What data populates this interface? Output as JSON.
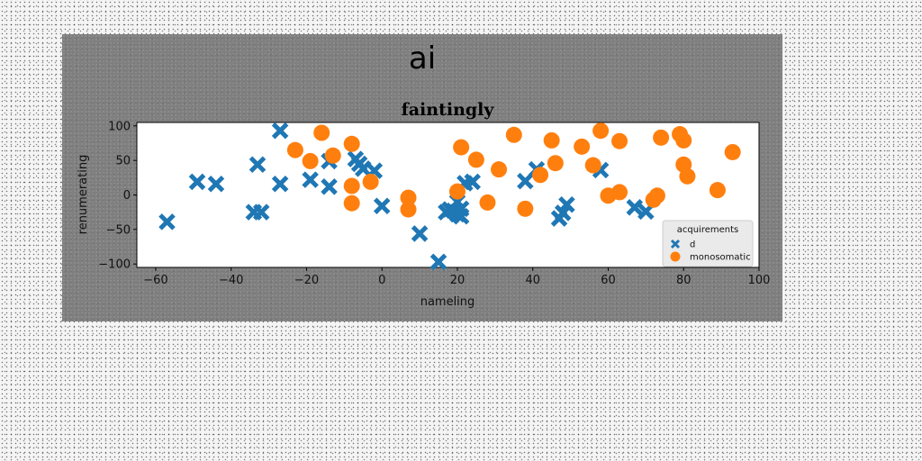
{
  "chart_data": {
    "type": "scatter",
    "suptitle": "ai",
    "title": "faintingly",
    "xlabel": "nameling",
    "ylabel": "renumerating",
    "xlim": [
      -65,
      100
    ],
    "ylim": [
      -105,
      105
    ],
    "xticks": [
      -60,
      -40,
      -20,
      0,
      20,
      40,
      60,
      80,
      100
    ],
    "yticks": [
      -100,
      -50,
      0,
      50,
      100
    ],
    "grid": false,
    "legend": {
      "title": "acquirements",
      "placement": "lower-right"
    },
    "series": [
      {
        "name": "d",
        "marker": "x",
        "color": "#1f77b4",
        "points": [
          [
            -57,
            -39
          ],
          [
            -49,
            19
          ],
          [
            -44,
            16
          ],
          [
            -33,
            44
          ],
          [
            -34,
            -25
          ],
          [
            -32,
            -25
          ],
          [
            -27,
            93
          ],
          [
            -27,
            16
          ],
          [
            -19,
            22
          ],
          [
            -14,
            49
          ],
          [
            -14,
            12
          ],
          [
            -7,
            52
          ],
          [
            -6,
            45
          ],
          [
            -5,
            38
          ],
          [
            -2,
            35
          ],
          [
            0,
            -16
          ],
          [
            10,
            -56
          ],
          [
            15,
            -97
          ],
          [
            17,
            -25
          ],
          [
            18,
            -21
          ],
          [
            19,
            -23
          ],
          [
            20,
            -10
          ],
          [
            20,
            -28
          ],
          [
            21,
            -20
          ],
          [
            21,
            -31
          ],
          [
            22,
            17
          ],
          [
            24,
            19
          ],
          [
            38,
            20
          ],
          [
            41,
            37
          ],
          [
            47,
            -34
          ],
          [
            48,
            -26
          ],
          [
            49,
            -14
          ],
          [
            58,
            36
          ],
          [
            67,
            -18
          ],
          [
            70,
            -24
          ]
        ]
      },
      {
        "name": "monosomatic",
        "marker": "o",
        "color": "#ff7f0e",
        "points": [
          [
            -23,
            65
          ],
          [
            -19,
            49
          ],
          [
            -16,
            90
          ],
          [
            -13,
            57
          ],
          [
            -8,
            -12
          ],
          [
            -8,
            74
          ],
          [
            -8,
            13
          ],
          [
            -3,
            19
          ],
          [
            7,
            -4
          ],
          [
            7,
            -21
          ],
          [
            20,
            5
          ],
          [
            21,
            69
          ],
          [
            25,
            51
          ],
          [
            28,
            -11
          ],
          [
            31,
            37
          ],
          [
            35,
            87
          ],
          [
            38,
            -20
          ],
          [
            42,
            29
          ],
          [
            45,
            79
          ],
          [
            46,
            46
          ],
          [
            53,
            70
          ],
          [
            56,
            43
          ],
          [
            58,
            93
          ],
          [
            60,
            -1
          ],
          [
            63,
            4
          ],
          [
            63,
            78
          ],
          [
            72,
            -7
          ],
          [
            73,
            -1
          ],
          [
            74,
            83
          ],
          [
            79,
            88
          ],
          [
            80,
            79
          ],
          [
            80,
            44
          ],
          [
            81,
            27
          ],
          [
            89,
            7
          ],
          [
            93,
            62
          ]
        ]
      }
    ]
  }
}
